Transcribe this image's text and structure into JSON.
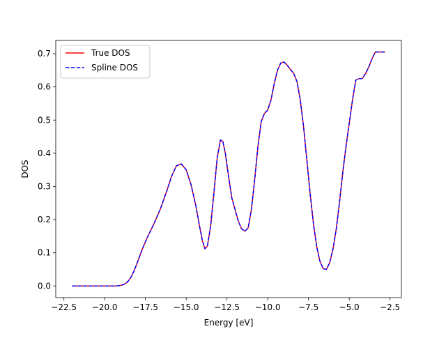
{
  "chart_data": {
    "type": "line",
    "title": "",
    "xlabel": "Energy [eV]",
    "ylabel": "DOS",
    "xlim": [
      -23.0,
      -1.8
    ],
    "ylim": [
      -0.035,
      0.74
    ],
    "xticks": [
      -22.5,
      -20.0,
      -17.5,
      -15.0,
      -12.5,
      -10.0,
      -7.5,
      -5.0,
      -2.5
    ],
    "xtick_labels": [
      "−22.5",
      "−20.0",
      "−17.5",
      "−15.0",
      "−12.5",
      "−10.0",
      "−7.5",
      "−5.0",
      "−2.5"
    ],
    "yticks": [
      0.0,
      0.1,
      0.2,
      0.3,
      0.4,
      0.5,
      0.6,
      0.7
    ],
    "ytick_labels": [
      "0.0",
      "0.1",
      "0.2",
      "0.3",
      "0.4",
      "0.5",
      "0.6",
      "0.7"
    ],
    "grid": false,
    "legend": "top-left",
    "x": [
      -22.0,
      -21.0,
      -20.0,
      -19.3,
      -19.0,
      -18.8,
      -18.6,
      -18.4,
      -18.2,
      -18.0,
      -17.7,
      -17.4,
      -17.0,
      -16.6,
      -16.2,
      -15.9,
      -15.6,
      -15.3,
      -15.0,
      -14.7,
      -14.4,
      -14.2,
      -14.0,
      -13.85,
      -13.7,
      -13.5,
      -13.3,
      -13.1,
      -12.9,
      -12.75,
      -12.6,
      -12.4,
      -12.2,
      -12.0,
      -11.8,
      -11.6,
      -11.4,
      -11.2,
      -11.0,
      -10.8,
      -10.6,
      -10.4,
      -10.2,
      -10.0,
      -9.8,
      -9.6,
      -9.4,
      -9.2,
      -9.0,
      -8.8,
      -8.6,
      -8.4,
      -8.2,
      -8.0,
      -7.8,
      -7.6,
      -7.4,
      -7.2,
      -7.0,
      -6.8,
      -6.6,
      -6.4,
      -6.2,
      -6.0,
      -5.8,
      -5.6,
      -5.4,
      -5.2,
      -5.0,
      -4.8,
      -4.6,
      -4.4,
      -4.2,
      -4.0,
      -3.8,
      -3.6,
      -3.4,
      -3.2,
      -3.0,
      -2.8
    ],
    "series": [
      {
        "name": "True DOS",
        "color": "#ff0000",
        "style": "solid",
        "values": [
          0.0,
          0.0,
          0.0,
          0.0,
          0.002,
          0.005,
          0.012,
          0.025,
          0.045,
          0.07,
          0.11,
          0.145,
          0.185,
          0.23,
          0.285,
          0.33,
          0.362,
          0.368,
          0.35,
          0.305,
          0.24,
          0.185,
          0.135,
          0.112,
          0.12,
          0.18,
          0.28,
          0.385,
          0.44,
          0.435,
          0.4,
          0.33,
          0.265,
          0.23,
          0.195,
          0.172,
          0.165,
          0.175,
          0.23,
          0.32,
          0.42,
          0.495,
          0.52,
          0.53,
          0.56,
          0.61,
          0.65,
          0.672,
          0.675,
          0.665,
          0.652,
          0.64,
          0.615,
          0.56,
          0.48,
          0.38,
          0.28,
          0.19,
          0.12,
          0.075,
          0.052,
          0.05,
          0.07,
          0.11,
          0.17,
          0.25,
          0.34,
          0.42,
          0.49,
          0.56,
          0.62,
          0.625,
          0.625,
          0.64,
          0.66,
          0.685,
          0.705,
          0.705,
          0.705,
          0.705
        ]
      },
      {
        "name": "Spline DOS",
        "color": "#0000ff",
        "style": "dashed",
        "values": [
          0.0,
          0.0,
          0.0,
          0.0,
          0.002,
          0.005,
          0.012,
          0.025,
          0.045,
          0.07,
          0.11,
          0.145,
          0.185,
          0.23,
          0.285,
          0.33,
          0.362,
          0.368,
          0.35,
          0.305,
          0.24,
          0.185,
          0.135,
          0.112,
          0.12,
          0.18,
          0.28,
          0.385,
          0.44,
          0.435,
          0.4,
          0.33,
          0.265,
          0.23,
          0.195,
          0.172,
          0.165,
          0.175,
          0.23,
          0.32,
          0.42,
          0.495,
          0.52,
          0.53,
          0.56,
          0.61,
          0.65,
          0.672,
          0.675,
          0.665,
          0.652,
          0.64,
          0.615,
          0.56,
          0.48,
          0.38,
          0.28,
          0.19,
          0.12,
          0.075,
          0.052,
          0.05,
          0.07,
          0.11,
          0.17,
          0.25,
          0.34,
          0.42,
          0.49,
          0.56,
          0.62,
          0.625,
          0.625,
          0.64,
          0.66,
          0.685,
          0.705,
          0.705,
          0.705,
          0.705
        ]
      }
    ]
  }
}
